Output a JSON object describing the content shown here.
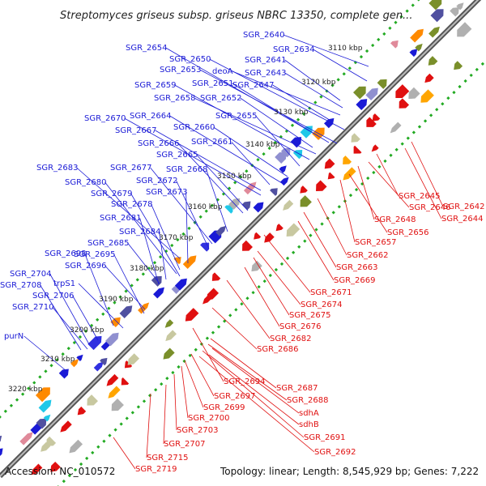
{
  "title": "Streptomyces griseus subsp. griseus NBRC 13350, complete gen...",
  "footer": {
    "accession": "Accession: NC_010572",
    "summary": "Topology: linear; Length: 8,545,929 bp; Genes: 7,222"
  },
  "colors": {
    "forward": "#1a1ad6",
    "reverse": "#e01010",
    "backbone": "#777777",
    "ticks": "#22aa22"
  },
  "ticks": [
    "3110 kbp",
    "3120 kbp",
    "3130 kbp",
    "3140 kbp",
    "3150 kbp",
    "3160 kbp",
    "3170 kbp",
    "3180 kbp",
    "3190 kbp",
    "3200 kbp",
    "3210 kbp",
    "3220 kbp"
  ],
  "forward_genes": [
    "SGR_2640",
    "SGR_2634",
    "SGR_2654",
    "SGR_2641",
    "SGR_2650",
    "SGR_2643",
    "SGR_2653",
    "deoA",
    "SGR_2651",
    "SGR_2647",
    "SGR_2659",
    "SGR_2658",
    "SGR_2652",
    "SGR_2655",
    "SGR_2670",
    "SGR_2664",
    "SGR_2660",
    "SGR_2667",
    "SGR_2661",
    "SGR_2666",
    "SGR_2665",
    "SGR_2683",
    "SGR_2677",
    "SGR_2668",
    "SGR_2680",
    "SGR_2672",
    "SGR_2679",
    "SGR_2673",
    "SGR_2678",
    "SGR_2681",
    "SGR_2684",
    "SGR_2685",
    "SGR_2698",
    "SGR_2695",
    "SGR_2696",
    "SGR_2704",
    "SGR_2708",
    "trpS1",
    "SGR_2706",
    "SGR_2710",
    "purN"
  ],
  "reverse_genes": [
    "SGR_2645",
    "SGR_2642",
    "SGR_2646",
    "SGR_2644",
    "SGR_2648",
    "SGR_2656",
    "SGR_2657",
    "SGR_2662",
    "SGR_2663",
    "SGR_2669",
    "SGR_2671",
    "SGR_2674",
    "SGR_2675",
    "SGR_2676",
    "SGR_2682",
    "SGR_2686",
    "SGR_2687",
    "SGR_2694",
    "SGR_2688",
    "SGR_2697",
    "sdhA",
    "SGR_2699",
    "sdhB",
    "SGR_2700",
    "SGR_2691",
    "SGR_2703",
    "SGR_2692",
    "SGR_2707",
    "SGR_2715",
    "SGR_2719"
  ]
}
